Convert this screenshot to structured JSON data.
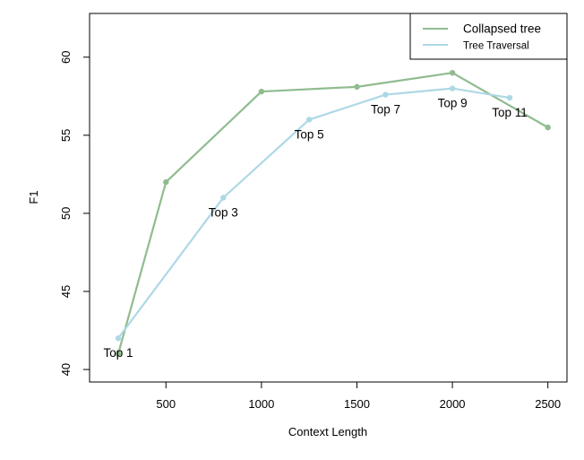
{
  "chart_data": {
    "type": "line",
    "title": "",
    "xlabel": "Context Length",
    "ylabel": "F1",
    "xlim": [
      100,
      2600
    ],
    "ylim": [
      39.2,
      62.8
    ],
    "x_ticks": [
      500,
      1000,
      1500,
      2000,
      2500
    ],
    "y_ticks": [
      40,
      45,
      50,
      55,
      60
    ],
    "grid": false,
    "legend_position": "top-right",
    "series": [
      {
        "name": "Collapsed tree",
        "color": "#8fbc8f",
        "points": [
          {
            "x": 250,
            "y": 41
          },
          {
            "x": 500,
            "y": 52
          },
          {
            "x": 1000,
            "y": 57.8
          },
          {
            "x": 1500,
            "y": 58.1
          },
          {
            "x": 2000,
            "y": 59
          },
          {
            "x": 2500,
            "y": 55.5
          }
        ]
      },
      {
        "name": "Tree Traversal",
        "color": "#add8e6",
        "points": [
          {
            "x": 250,
            "y": 42,
            "label": "Top 1"
          },
          {
            "x": 800,
            "y": 51,
            "label": "Top 3"
          },
          {
            "x": 1250,
            "y": 56,
            "label": "Top 5"
          },
          {
            "x": 1650,
            "y": 57.6,
            "label": "Top 7"
          },
          {
            "x": 2000,
            "y": 58,
            "label": "Top 9"
          },
          {
            "x": 2300,
            "y": 57.4,
            "label": "Top 11"
          }
        ]
      }
    ]
  }
}
